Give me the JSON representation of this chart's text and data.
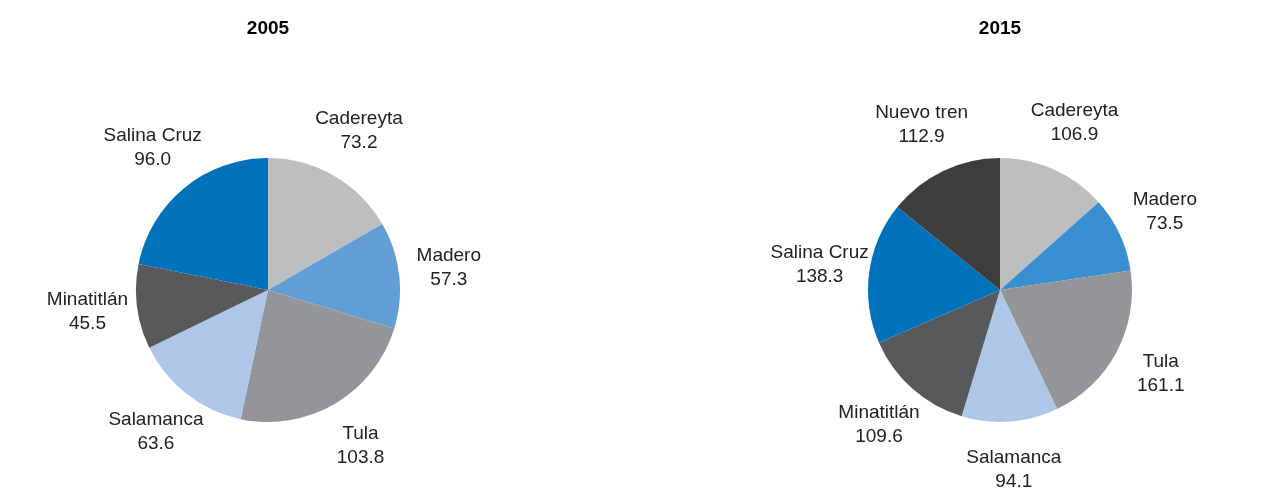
{
  "chart_data": [
    {
      "type": "pie",
      "title": "2005",
      "categories": [
        "Cadereyta",
        "Madero",
        "Tula",
        "Salamanca",
        "Minatitlán",
        "Salina Cruz"
      ],
      "values": [
        73.2,
        57.3,
        103.8,
        63.6,
        45.5,
        96.0
      ],
      "value_labels": [
        "73.2",
        "57.3",
        "103.8",
        "63.6",
        "45.5",
        "96.0"
      ],
      "colors": [
        "#bcbec0",
        "#629dd6",
        "#939598",
        "#aec6e8",
        "#58595b",
        "#0072bc"
      ],
      "data_labels": true
    },
    {
      "type": "pie",
      "title": "2015",
      "categories": [
        "Cadereyta",
        "Madero",
        "Tula",
        "Salamanca",
        "Minatitlán",
        "Salina Cruz",
        "Nuevo tren"
      ],
      "values": [
        106.9,
        73.5,
        161.1,
        94.1,
        109.6,
        138.3,
        112.9
      ],
      "value_labels": [
        "106.9",
        "73.5",
        "161.1",
        "94.1",
        "109.6",
        "138.3",
        "112.9"
      ],
      "colors": [
        "#bcbec0",
        "#3a8fd0",
        "#939598",
        "#aec6e8",
        "#58595b",
        "#0072bc",
        "#3d3d3e"
      ],
      "data_labels": true
    }
  ]
}
